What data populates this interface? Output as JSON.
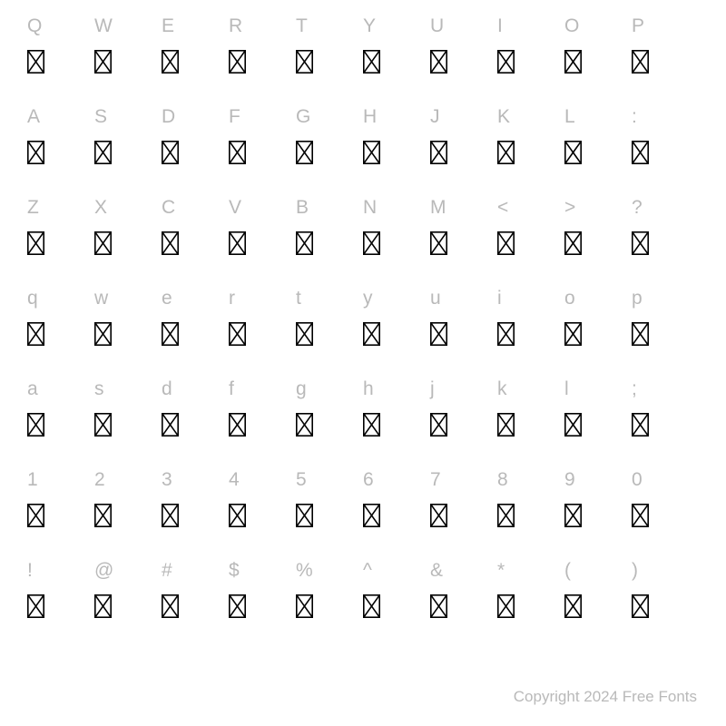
{
  "layout": {
    "columns": 10,
    "rows": 7,
    "label_color": "#b9b9b9",
    "label_fontsize": 21,
    "glyph_color": "#000000",
    "glyph_width": 19,
    "glyph_height": 26,
    "glyph_stroke": 1.6,
    "background": "#ffffff"
  },
  "rows": [
    [
      "Q",
      "W",
      "E",
      "R",
      "T",
      "Y",
      "U",
      "I",
      "O",
      "P"
    ],
    [
      "A",
      "S",
      "D",
      "F",
      "G",
      "H",
      "J",
      "K",
      "L",
      ":"
    ],
    [
      "Z",
      "X",
      "C",
      "V",
      "B",
      "N",
      "M",
      "<",
      ">",
      "?"
    ],
    [
      "q",
      "w",
      "e",
      "r",
      "t",
      "y",
      "u",
      "i",
      "o",
      "p"
    ],
    [
      "a",
      "s",
      "d",
      "f",
      "g",
      "h",
      "j",
      "k",
      "l",
      ";"
    ],
    [
      "1",
      "2",
      "3",
      "4",
      "5",
      "6",
      "7",
      "8",
      "9",
      "0"
    ],
    [
      "!",
      "@",
      "#",
      "$",
      "%",
      "^",
      "&",
      "*",
      "(",
      ")"
    ]
  ],
  "footer": "Copyright 2024 Free Fonts"
}
